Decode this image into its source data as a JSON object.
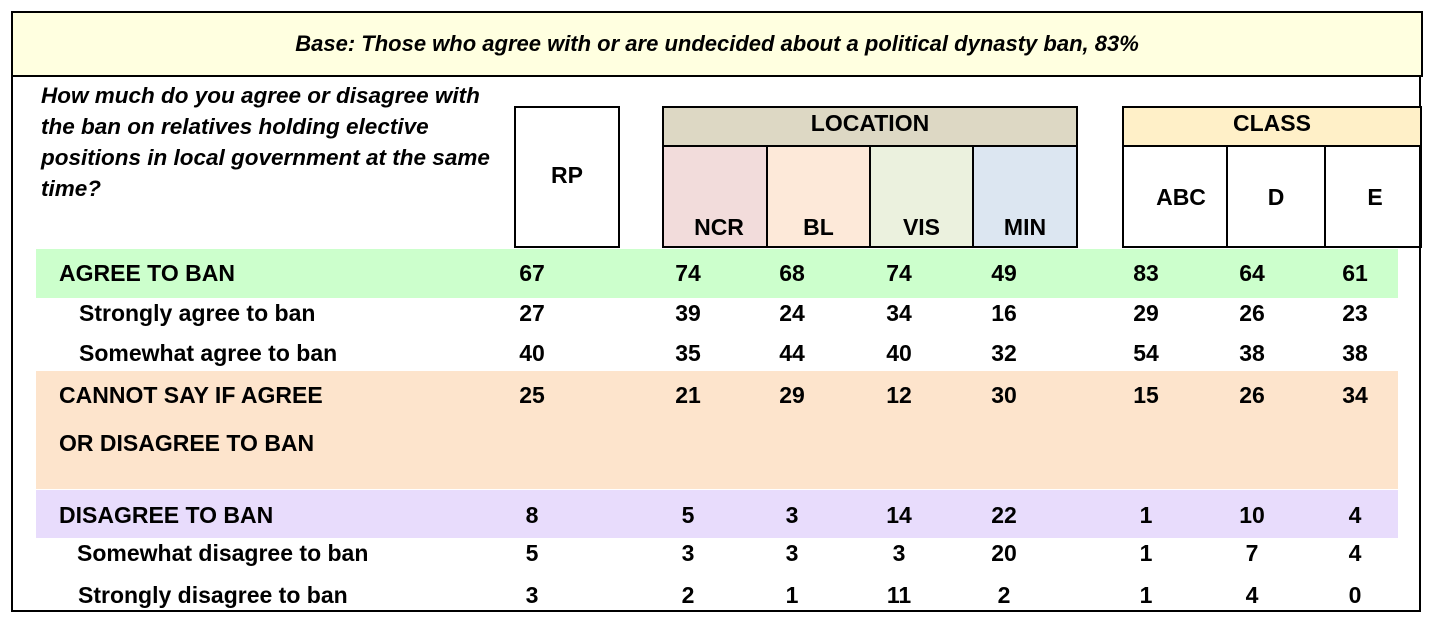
{
  "base_note": "Base: Those who agree with or are undecided about a political dynasty ban, 83%",
  "question": "How much do you agree or disagree with the ban on relatives holding elective positions in local government at the same time?",
  "colors": {
    "banner_bg": "#ffffe0",
    "location_header_bg": "#ddd8c4",
    "class_header_bg": "#fff0c8",
    "ncr_bg": "#f2dcdb",
    "bl_bg": "#fde9d9",
    "vis_bg": "#ebf1de",
    "min_bg": "#dce6f1",
    "agree_band": "#ccffcc",
    "cannot_say_band": "#fde4cc",
    "disagree_band": "#e8dcfc"
  },
  "chart_data": {
    "type": "table",
    "column_groups": {
      "rp": "RP",
      "location": {
        "label": "LOCATION",
        "columns": [
          "NCR",
          "BL",
          "VIS",
          "MIN"
        ]
      },
      "class": {
        "label": "CLASS",
        "columns": [
          "ABC",
          "D",
          "E"
        ]
      }
    },
    "columns": [
      "RP",
      "NCR",
      "BL",
      "VIS",
      "MIN",
      "ABC",
      "D",
      "E"
    ],
    "rows": [
      {
        "label": "AGREE TO BAN",
        "values": [
          67,
          74,
          68,
          74,
          49,
          83,
          64,
          61
        ]
      },
      {
        "label": "Strongly agree to ban",
        "values": [
          27,
          39,
          24,
          34,
          16,
          29,
          26,
          23
        ]
      },
      {
        "label": "Somewhat agree to ban",
        "values": [
          40,
          35,
          44,
          40,
          32,
          54,
          38,
          38
        ]
      },
      {
        "label": "CANNOT SAY IF AGREE",
        "label_line2": "OR DISAGREE TO BAN",
        "values": [
          25,
          21,
          29,
          12,
          30,
          15,
          26,
          34
        ]
      },
      {
        "label": "DISAGREE TO BAN",
        "values": [
          8,
          5,
          3,
          14,
          22,
          1,
          10,
          4
        ]
      },
      {
        "label": "Somewhat disagree to ban",
        "values": [
          5,
          3,
          3,
          3,
          20,
          1,
          7,
          4
        ]
      },
      {
        "label": "Strongly disagree to ban",
        "values": [
          3,
          2,
          1,
          11,
          2,
          1,
          4,
          0
        ]
      }
    ]
  }
}
